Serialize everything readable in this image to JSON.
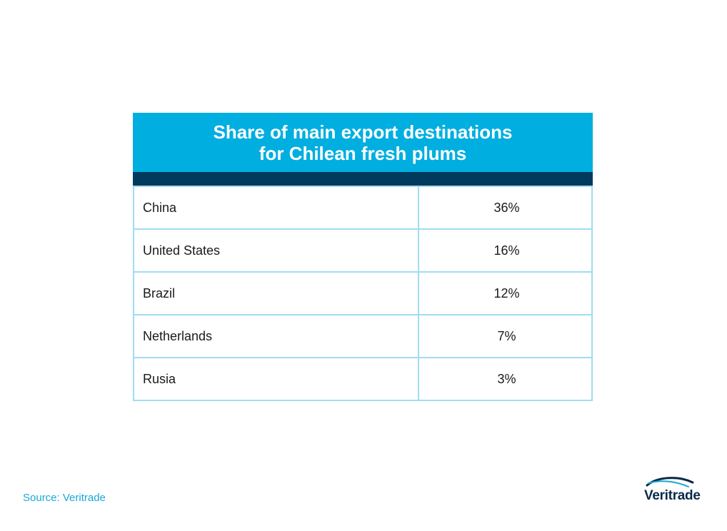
{
  "chart_data": {
    "type": "table",
    "title_line1": "Share of main export destinations",
    "title_line2": "for Chilean fresh plums",
    "rows": [
      {
        "country": "China",
        "share": "36%"
      },
      {
        "country": "United States",
        "share": "16%"
      },
      {
        "country": "Brazil",
        "share": "12%"
      },
      {
        "country": "Netherlands",
        "share": "7%"
      },
      {
        "country": "Rusia",
        "share": "3%"
      }
    ]
  },
  "footer": {
    "source": "Source: Veritrade",
    "logo_text": "Veritrade"
  },
  "colors": {
    "header": "#00aee0",
    "header_band": "#003a5c",
    "grid": "#9fdcf2",
    "source_text": "#1aa7d6",
    "logo_text": "#0a2a4a"
  }
}
